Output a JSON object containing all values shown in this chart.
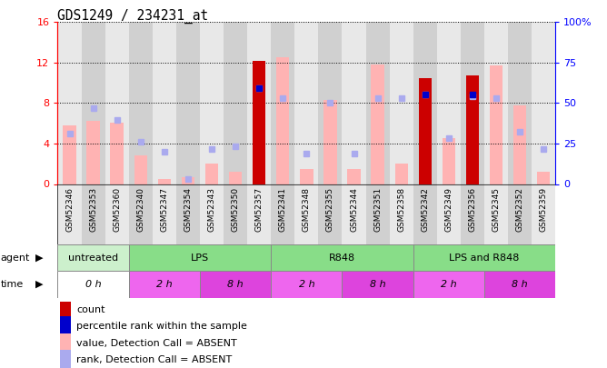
{
  "title": "GDS1249 / 234231_at",
  "samples": [
    "GSM52346",
    "GSM52353",
    "GSM52360",
    "GSM52340",
    "GSM52347",
    "GSM52354",
    "GSM52343",
    "GSM52350",
    "GSM52357",
    "GSM52341",
    "GSM52348",
    "GSM52355",
    "GSM52344",
    "GSM52351",
    "GSM52358",
    "GSM52342",
    "GSM52349",
    "GSM52356",
    "GSM52345",
    "GSM52352",
    "GSM52359"
  ],
  "count_values": [
    0,
    0,
    0,
    0,
    0,
    0,
    0,
    0,
    12.2,
    0,
    0,
    0,
    0,
    0,
    0,
    10.5,
    0,
    10.7,
    0,
    0,
    0
  ],
  "absent_bar_values": [
    5.8,
    6.2,
    6.1,
    2.8,
    0.5,
    0.7,
    2.0,
    1.2,
    0,
    12.5,
    1.5,
    8.3,
    1.5,
    11.8,
    2.0,
    0,
    4.5,
    0,
    11.7,
    7.8,
    1.2
  ],
  "absent_rank_values": [
    5.0,
    7.5,
    6.3,
    4.2,
    3.2,
    0.5,
    3.5,
    3.7,
    9.5,
    8.5,
    3.0,
    8.0,
    3.0,
    8.5,
    8.5,
    8.8,
    4.5,
    8.7,
    8.5,
    5.2,
    3.5
  ],
  "percentile_rank_values": [
    null,
    null,
    null,
    null,
    null,
    null,
    null,
    null,
    9.5,
    null,
    null,
    null,
    null,
    null,
    null,
    8.8,
    null,
    8.8,
    null,
    null,
    null
  ],
  "ylim_left": [
    0,
    16
  ],
  "ylim_right": [
    0,
    100
  ],
  "yticks_left": [
    0,
    4,
    8,
    12,
    16
  ],
  "ytick_labels_left": [
    "0",
    "4",
    "8",
    "12",
    "16"
  ],
  "ytick_labels_right": [
    "0",
    "25",
    "50",
    "75",
    "100%"
  ],
  "color_count": "#cc0000",
  "color_percentile": "#0000cc",
  "color_absent_bar": "#ffb3b3",
  "color_absent_rank": "#aaaaee",
  "agent_groups": [
    {
      "label": "untreated",
      "start": 0,
      "end": 3,
      "color": "#ccf0cc"
    },
    {
      "label": "LPS",
      "start": 3,
      "end": 9,
      "color": "#88dd88"
    },
    {
      "label": "R848",
      "start": 9,
      "end": 15,
      "color": "#88dd88"
    },
    {
      "label": "LPS and R848",
      "start": 15,
      "end": 21,
      "color": "#88dd88"
    }
  ],
  "time_groups": [
    {
      "label": "0 h",
      "start": 0,
      "end": 3,
      "color": "#ffffff"
    },
    {
      "label": "2 h",
      "start": 3,
      "end": 6,
      "color": "#ee66ee"
    },
    {
      "label": "8 h",
      "start": 6,
      "end": 9,
      "color": "#dd44dd"
    },
    {
      "label": "2 h",
      "start": 9,
      "end": 12,
      "color": "#ee66ee"
    },
    {
      "label": "8 h",
      "start": 12,
      "end": 15,
      "color": "#dd44dd"
    },
    {
      "label": "2 h",
      "start": 15,
      "end": 18,
      "color": "#ee66ee"
    },
    {
      "label": "8 h",
      "start": 18,
      "end": 21,
      "color": "#dd44dd"
    }
  ],
  "legend_items": [
    {
      "label": "count",
      "color": "#cc0000"
    },
    {
      "label": "percentile rank within the sample",
      "color": "#0000cc"
    },
    {
      "label": "value, Detection Call = ABSENT",
      "color": "#ffb3b3"
    },
    {
      "label": "rank, Detection Call = ABSENT",
      "color": "#aaaaee"
    }
  ]
}
